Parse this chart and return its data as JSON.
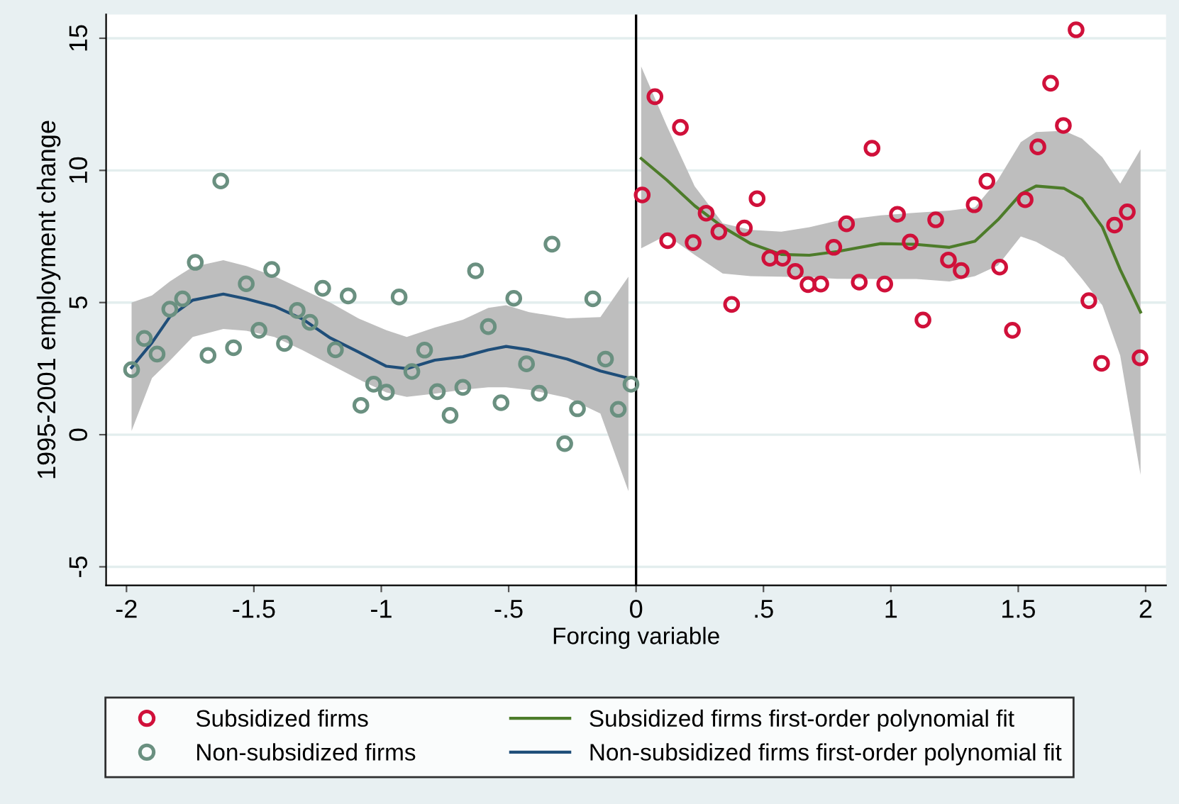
{
  "chart_data": {
    "type": "scatter",
    "xlabel": "Forcing variable",
    "ylabel": "1995-2001 employment change",
    "xlim": [
      -2.08,
      2.08
    ],
    "ylim": [
      -5.7,
      15.9
    ],
    "xticks": [
      -2,
      -1.5,
      -1,
      {
        "value": -0.5,
        "label": "-.5"
      },
      0,
      {
        "value": 0.5,
        "label": ".5"
      },
      1,
      1.5,
      2
    ],
    "yticks": [
      -5,
      0,
      5,
      10,
      15
    ],
    "grid": "y",
    "legend": "bottom",
    "marker": "circle",
    "ref_lines": [
      {
        "axis": "x",
        "value": 0,
        "color": "#000000"
      }
    ],
    "series": [
      {
        "name": "Subsidized firms",
        "color": "#d0103a",
        "x": [
          0.024,
          0.074,
          0.124,
          0.174,
          0.224,
          0.275,
          0.325,
          0.375,
          0.425,
          0.475,
          0.525,
          0.575,
          0.625,
          0.675,
          0.725,
          0.776,
          0.826,
          0.876,
          0.926,
          0.976,
          1.026,
          1.076,
          1.126,
          1.176,
          1.226,
          1.276,
          1.327,
          1.377,
          1.427,
          1.477,
          1.527,
          1.577,
          1.627,
          1.677,
          1.727,
          1.777,
          1.827,
          1.878,
          1.928,
          1.978
        ],
        "values": [
          9.07,
          12.79,
          7.34,
          11.63,
          7.27,
          8.38,
          7.68,
          4.93,
          7.82,
          8.93,
          6.68,
          6.68,
          6.18,
          5.68,
          5.7,
          7.09,
          7.98,
          5.77,
          10.84,
          5.7,
          8.34,
          7.29,
          4.34,
          8.13,
          6.61,
          6.21,
          8.7,
          9.59,
          6.34,
          3.95,
          8.89,
          10.89,
          13.3,
          11.7,
          15.32,
          5.07,
          2.7,
          7.93,
          8.43,
          2.91
        ]
      },
      {
        "name": "Non-subsidized firms",
        "color": "#6a9080",
        "x": [
          -1.98,
          -1.93,
          -1.88,
          -1.83,
          -1.78,
          -1.73,
          -1.68,
          -1.63,
          -1.58,
          -1.53,
          -1.48,
          -1.43,
          -1.38,
          -1.33,
          -1.28,
          -1.23,
          -1.18,
          -1.13,
          -1.08,
          -1.03,
          -0.98,
          -0.93,
          -0.88,
          -0.83,
          -0.78,
          -0.73,
          -0.68,
          -0.63,
          -0.58,
          -0.53,
          -0.48,
          -0.43,
          -0.38,
          -0.33,
          -0.28,
          -0.23,
          -0.17,
          -0.12,
          -0.07,
          -0.02
        ],
        "values": [
          2.46,
          3.64,
          3.05,
          4.75,
          5.14,
          6.52,
          3.0,
          9.6,
          3.29,
          5.71,
          3.95,
          6.25,
          3.45,
          4.7,
          4.25,
          5.54,
          3.21,
          5.25,
          1.11,
          1.91,
          1.61,
          5.21,
          2.39,
          3.2,
          1.63,
          0.73,
          1.79,
          6.2,
          4.09,
          1.21,
          5.16,
          2.68,
          1.57,
          7.21,
          -0.34,
          0.98,
          5.14,
          2.86,
          0.96,
          1.91
        ]
      },
      {
        "name": "Subsidized firms first-order polynomial fit",
        "type": "line",
        "color": "#4d7c2a",
        "line_style": "solid",
        "marker": "none",
        "x": [
          0.02,
          0.12,
          0.23,
          0.34,
          0.45,
          0.57,
          0.68,
          0.79,
          0.96,
          1.1,
          1.23,
          1.33,
          1.42,
          1.51,
          1.57,
          1.68,
          1.75,
          1.83,
          1.9,
          1.98
        ],
        "values": [
          10.45,
          9.64,
          8.66,
          7.86,
          7.23,
          6.82,
          6.79,
          6.93,
          7.23,
          7.2,
          7.09,
          7.32,
          8.13,
          9.11,
          9.41,
          9.32,
          8.93,
          7.86,
          6.25,
          4.64
        ],
        "upper": [
          13.93,
          11.7,
          9.4,
          8.0,
          7.75,
          7.68,
          7.85,
          8.1,
          8.3,
          8.4,
          8.48,
          8.6,
          9.64,
          11.07,
          11.45,
          11.5,
          11.2,
          10.5,
          9.5,
          10.8
        ],
        "lower": [
          7.05,
          7.55,
          6.8,
          6.1,
          6.0,
          5.98,
          5.95,
          5.9,
          5.89,
          5.89,
          5.8,
          6.0,
          6.4,
          7.5,
          7.3,
          6.7,
          5.9,
          4.9,
          3.0,
          -1.52
        ]
      },
      {
        "name": "Non-subsidized firms first-order polynomial fit",
        "type": "line",
        "color": "#1f4e79",
        "line_style": "solid",
        "marker": "none",
        "x": [
          -1.98,
          -1.9,
          -1.83,
          -1.74,
          -1.62,
          -1.53,
          -1.42,
          -1.31,
          -1.2,
          -1.09,
          -0.98,
          -0.9,
          -0.79,
          -0.68,
          -0.58,
          -0.51,
          -0.42,
          -0.27,
          -0.14,
          -0.03
        ],
        "values": [
          2.54,
          3.48,
          4.46,
          5.09,
          5.32,
          5.14,
          4.86,
          4.38,
          3.66,
          3.13,
          2.59,
          2.5,
          2.82,
          2.95,
          3.21,
          3.34,
          3.21,
          2.86,
          2.41,
          2.14
        ],
        "upper": [
          5.0,
          5.27,
          5.8,
          6.35,
          6.6,
          6.38,
          6.0,
          5.5,
          5.0,
          4.4,
          3.95,
          3.7,
          4.05,
          4.35,
          4.8,
          4.9,
          4.64,
          4.4,
          4.45,
          5.98
        ],
        "lower": [
          0.14,
          2.14,
          2.8,
          3.7,
          4.0,
          3.93,
          3.7,
          3.2,
          2.65,
          2.1,
          1.6,
          1.43,
          1.55,
          1.7,
          1.79,
          1.79,
          1.7,
          1.4,
          0.8,
          -2.14
        ]
      }
    ]
  }
}
